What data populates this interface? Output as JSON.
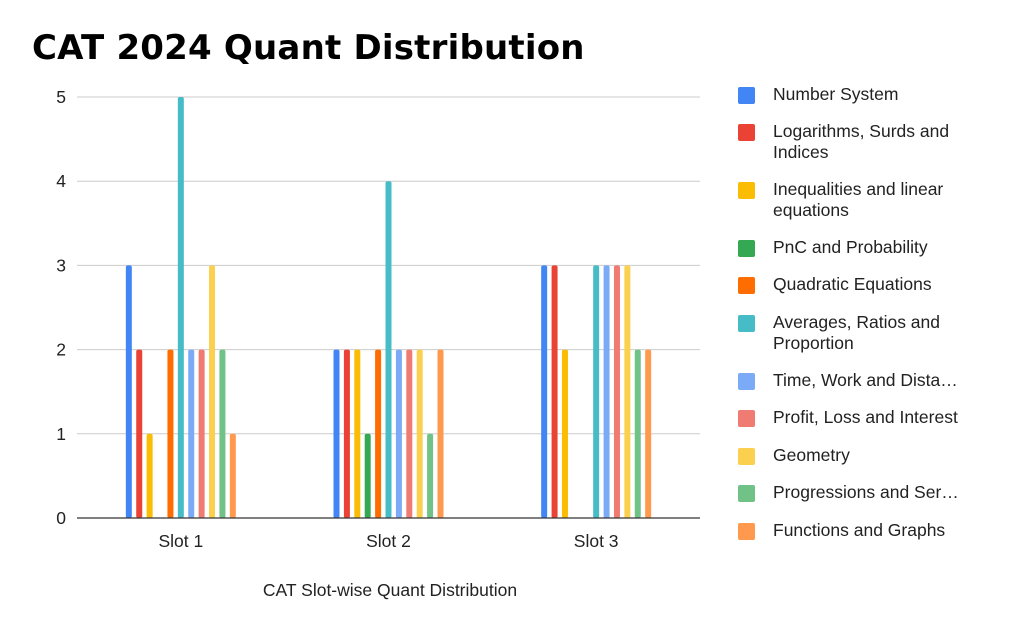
{
  "title": "CAT 2024 Quant Distribution",
  "chart_data": {
    "type": "bar",
    "title": "CAT 2024 Quant Distribution",
    "xlabel": "CAT Slot-wise Quant Distribution",
    "ylabel": "",
    "ylim": [
      0,
      5
    ],
    "yticks": [
      "0",
      "1",
      "2",
      "3",
      "4",
      "5"
    ],
    "grid": true,
    "legend_position": "right",
    "categories": [
      "Slot 1",
      "Slot 2",
      "Slot 3"
    ],
    "series": [
      {
        "name": "Number System",
        "color": "#4285f4",
        "values": [
          3,
          2,
          3
        ]
      },
      {
        "name": "Logarithms, Surds and Indices",
        "color": "#ea4335",
        "values": [
          2,
          2,
          3
        ]
      },
      {
        "name": "Inequalities and linear equations",
        "color": "#fbbc04",
        "values": [
          1,
          2,
          2
        ]
      },
      {
        "name": "PnC and Probability",
        "color": "#34a853",
        "values": [
          0,
          1,
          0
        ]
      },
      {
        "name": "Quadratic Equations",
        "color": "#ff6d01",
        "values": [
          2,
          2,
          0
        ]
      },
      {
        "name": "Averages, Ratios and Proportion",
        "color": "#46bdc6",
        "values": [
          5,
          4,
          3
        ]
      },
      {
        "name": "Time, Work and Dista…",
        "color": "#7baaf7",
        "values": [
          2,
          2,
          3
        ]
      },
      {
        "name": "Profit, Loss and Interest",
        "color": "#f07b72",
        "values": [
          2,
          2,
          3
        ]
      },
      {
        "name": "Geometry",
        "color": "#fcd04f",
        "values": [
          3,
          2,
          3
        ]
      },
      {
        "name": "Progressions and Ser…",
        "color": "#71c287",
        "values": [
          2,
          1,
          2
        ]
      },
      {
        "name": "Functions and Graphs",
        "color": "#ff994d",
        "values": [
          1,
          2,
          2
        ]
      }
    ]
  }
}
